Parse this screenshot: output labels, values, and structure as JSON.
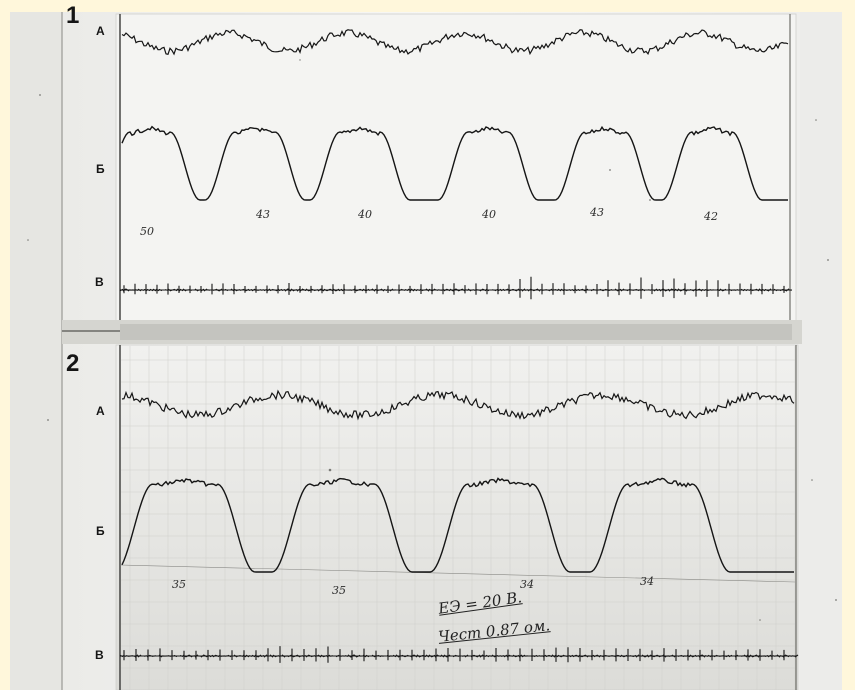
{
  "panels": [
    {
      "number": "1",
      "traces": [
        {
          "label": "А"
        },
        {
          "label": "Б"
        },
        {
          "label": "В"
        }
      ],
      "cycle_marks": [
        "50",
        "43",
        "40",
        "40",
        "43",
        "42"
      ]
    },
    {
      "number": "2",
      "traces": [
        {
          "label": "А"
        },
        {
          "label": "Б"
        },
        {
          "label": "В"
        }
      ],
      "cycle_marks": [
        "35",
        "35",
        "34",
        "34"
      ]
    }
  ],
  "annotation": {
    "line1": "ЕЭ = 20 В.",
    "line2": "Чест 0.87 ом."
  },
  "colors": {
    "paper": "#f3f3f1",
    "ink": "#111111",
    "frame": "#fff7db"
  }
}
